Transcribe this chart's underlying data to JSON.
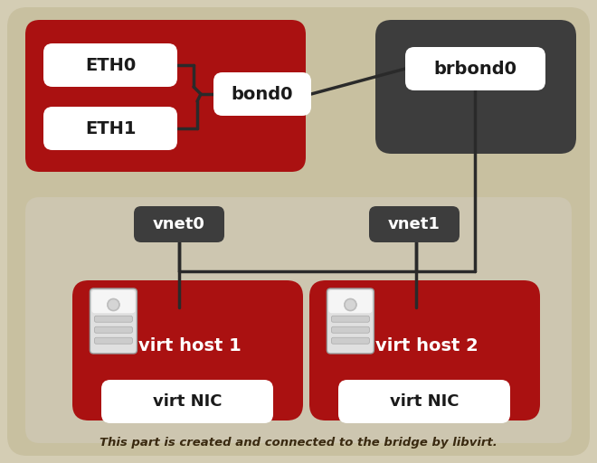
{
  "fig_bg": "#d4cdb4",
  "outer_bg": "#c8c0a0",
  "red_color": "#aa1111",
  "dark_gray": "#3d3d3d",
  "dark_gray2": "#484848",
  "light_panel": "#cdc6b0",
  "white": "#ffffff",
  "line_color": "#2a2a2a",
  "dot_color": "#c0b898",
  "bottom_text": "This part is created and connected to the bridge by libvirt.",
  "eth0_label": "ETH0",
  "eth1_label": "ETH1",
  "bond0_label": "bond0",
  "brbond0_label": "brbond0",
  "vnet0_label": "vnet0",
  "vnet1_label": "vnet1",
  "vhost1_label": "virt host 1",
  "vhost2_label": "virt host 2",
  "vnic_label": "virt NIC"
}
